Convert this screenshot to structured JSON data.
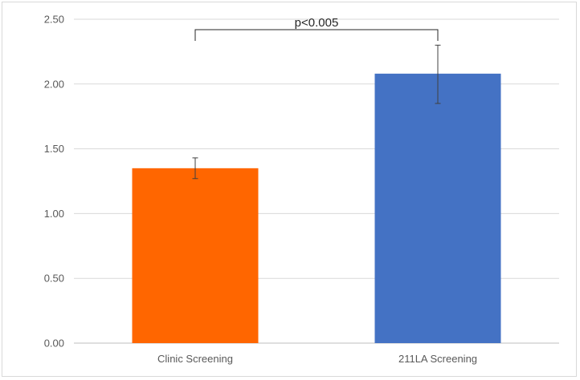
{
  "chart_data": {
    "type": "bar",
    "categories": [
      "Clinic Screening",
      "211LA Screening"
    ],
    "values": [
      1.35,
      2.08
    ],
    "error_low": [
      1.27,
      1.85
    ],
    "error_high": [
      1.43,
      2.3
    ],
    "colors": [
      "#ff6600",
      "#4472c4"
    ],
    "ylim": [
      0,
      2.5
    ],
    "yticks": [
      "0.00",
      "0.50",
      "1.00",
      "1.50",
      "2.00",
      "2.50"
    ],
    "ytick_values": [
      0,
      0.5,
      1.0,
      1.5,
      2.0,
      2.5
    ],
    "grid": true,
    "annotation": "p<0.005",
    "xlabel": "",
    "ylabel": "",
    "title": ""
  }
}
